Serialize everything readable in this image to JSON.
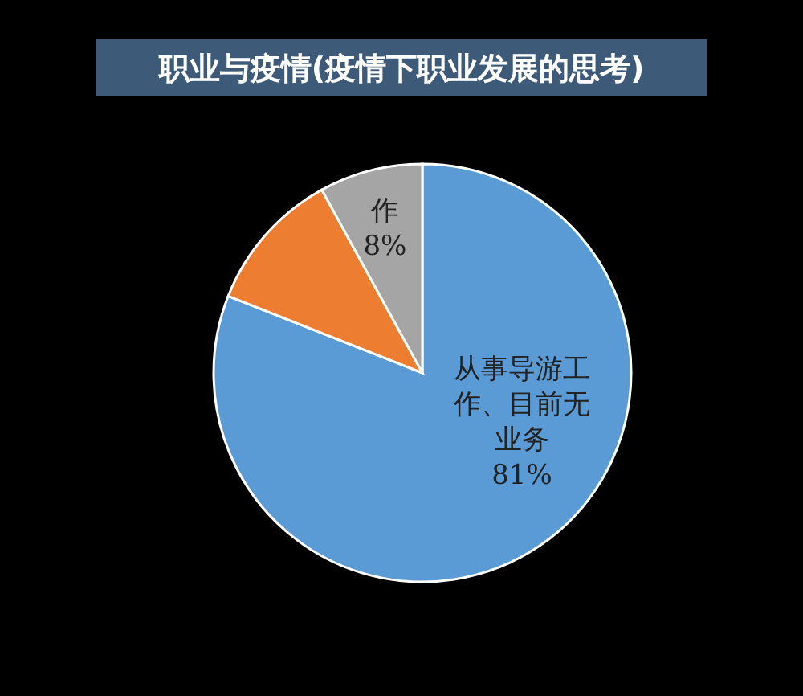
{
  "chart_data": {
    "type": "pie",
    "title": "职业与疫情(疫情下职业发展的思考)",
    "categories": [
      "从事导游工作、目前无业务",
      null,
      "作"
    ],
    "values": [
      81,
      11,
      8
    ],
    "colors": [
      "#5b9bd5",
      "#ed7d31",
      "#a5a5a5"
    ],
    "value_labels": [
      "81%",
      null,
      "8%"
    ]
  }
}
